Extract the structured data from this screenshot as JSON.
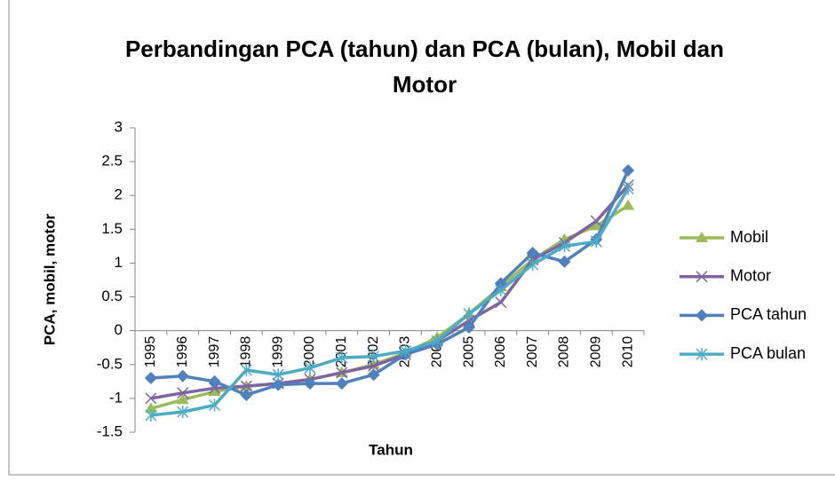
{
  "chart_data": {
    "type": "line",
    "title": "Perbandingan PCA (tahun) dan PCA (bulan), Mobil dan Motor",
    "x_label": "Tahun",
    "y_label": "PCA, mobil, motor",
    "categories": [
      "1995",
      "1996",
      "1997",
      "1998",
      "1999",
      "2000",
      "2001",
      "2002",
      "2003",
      "2004",
      "2005",
      "2006",
      "2007",
      "2008",
      "2009",
      "2010"
    ],
    "series": [
      {
        "name": "Mobil",
        "color": "#9bbb59",
        "marker": "triangle",
        "values": [
          -1.15,
          -1.02,
          -0.9,
          -0.82,
          -0.78,
          -0.72,
          -0.62,
          -0.5,
          -0.33,
          -0.1,
          0.25,
          0.65,
          1.05,
          1.35,
          1.55,
          1.85
        ]
      },
      {
        "name": "Motor",
        "color": "#8064a2",
        "marker": "x",
        "values": [
          -1.0,
          -0.92,
          -0.85,
          -0.82,
          -0.78,
          -0.72,
          -0.62,
          -0.52,
          -0.35,
          -0.15,
          0.15,
          0.42,
          1.05,
          1.3,
          1.62,
          2.15
        ]
      },
      {
        "name": "PCA tahun",
        "color": "#4f81bd",
        "marker": "diamond",
        "values": [
          -0.7,
          -0.67,
          -0.75,
          -0.95,
          -0.8,
          -0.78,
          -0.78,
          -0.65,
          -0.35,
          -0.2,
          0.05,
          0.7,
          1.15,
          1.02,
          1.35,
          2.37
        ]
      },
      {
        "name": "PCA bulan",
        "color": "#4bacc6",
        "marker": "asterisk",
        "values": [
          -1.25,
          -1.2,
          -1.1,
          -0.58,
          -0.65,
          -0.55,
          -0.4,
          -0.38,
          -0.3,
          -0.15,
          0.25,
          0.6,
          0.98,
          1.25,
          1.32,
          2.1
        ]
      }
    ],
    "ylim": [
      -1.5,
      3
    ],
    "yticks": [
      -1.5,
      -1,
      -0.5,
      0,
      0.5,
      1,
      1.5,
      2,
      2.5,
      3
    ],
    "grid": false,
    "legend": "right"
  }
}
